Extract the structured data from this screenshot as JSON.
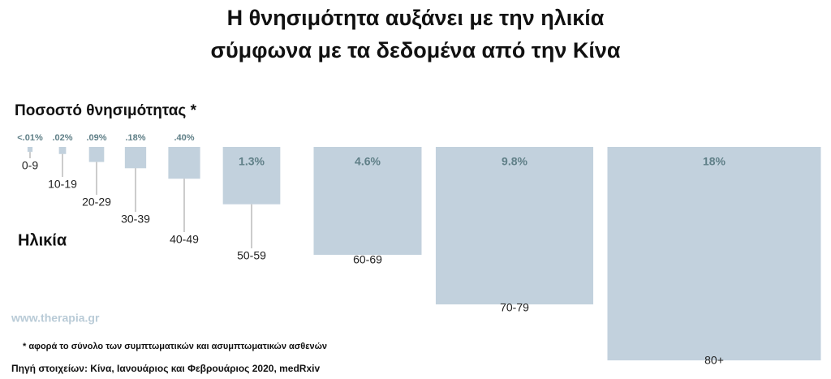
{
  "chart_data": {
    "type": "proportional-squares",
    "title": [
      "Η θνησιμότητα αυξάνει με την ηλικία",
      "σύμφωνα με τα δεδομένα από την Κίνα"
    ],
    "value_axis_label": "Ποσοστό θνησιμότητας *",
    "category_axis_label": "Ηλικία",
    "categories": [
      "0-9",
      "10-19",
      "20-29",
      "30-39",
      "40-49",
      "50-59",
      "60-69",
      "70-79",
      "80+"
    ],
    "values": [
      0.01,
      0.02,
      0.09,
      0.18,
      0.4,
      1.3,
      4.6,
      9.8,
      18
    ],
    "value_labels": [
      "<.01%",
      ".02%",
      ".09%",
      ".18%",
      ".40%",
      "1.3%",
      "4.6%",
      "9.8%",
      "18%"
    ],
    "color": "#c2d1dd",
    "label_color": "#5f7f87",
    "watermark": "www.therapia.gr",
    "footnote": "* αφορά το σύνολο των συμπτωματικών και ασυμπτωματικών ασθενών",
    "source": "Πηγή στοιχείων: Κίνα, Ιανουάριος και Φεβρουάριος 2020, medRxiv"
  }
}
